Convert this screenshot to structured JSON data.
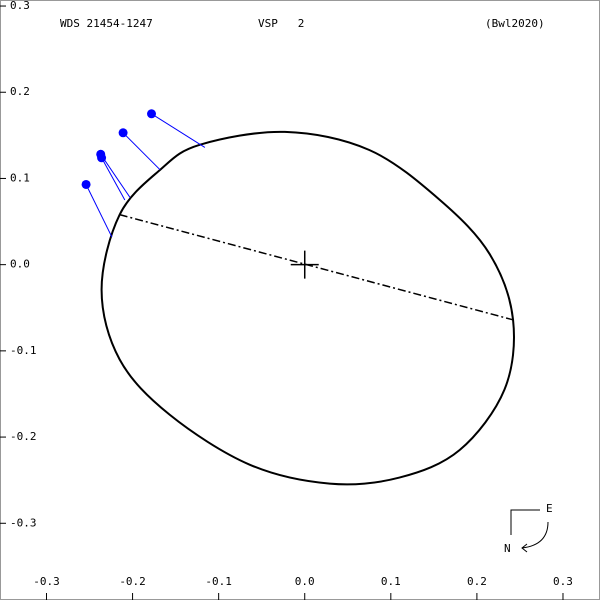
{
  "chart_data": {
    "type": "orbit",
    "title": "WDS 21454-1247",
    "subtitle": "VSP   2",
    "reference": "(Bwl2020)",
    "xlim": [
      -0.354,
      0.343
    ],
    "ylim": [
      -0.389,
      0.307
    ],
    "xticks": [
      -0.3,
      -0.2,
      -0.1,
      {
        "value": 0,
        "label": "0.0"
      },
      0.1,
      0.2,
      0.3
    ],
    "yticks": [
      0.3,
      0.2,
      0.1,
      {
        "value": 0,
        "label": "0.0"
      },
      -0.1,
      -0.2,
      -0.3
    ],
    "orbit": {
      "color": "#000000",
      "x": [
        -0.168,
        -0.122,
        -0.023,
        0.075,
        0.157,
        0.215,
        0.242,
        0.232,
        0.18,
        0.11,
        0.029,
        -0.064,
        -0.157,
        -0.215,
        -0.236,
        -0.215
      ],
      "y": [
        0.11,
        0.139,
        0.154,
        0.133,
        0.075,
        0.012,
        -0.064,
        -0.145,
        -0.215,
        -0.247,
        -0.254,
        -0.232,
        -0.174,
        -0.11,
        -0.029,
        0.058
      ]
    },
    "line_of_nodes": {
      "x": [
        -0.215,
        0.242
      ],
      "y": [
        0.058,
        -0.064
      ]
    },
    "observations": {
      "color": "#0000ff",
      "x": [
        -0.178,
        -0.211,
        -0.237,
        -0.236,
        -0.254
      ],
      "y": [
        0.175,
        0.153,
        0.128,
        0.124,
        0.093
      ],
      "residual_x": [
        -0.116,
        -0.168,
        -0.203,
        -0.209,
        -0.224
      ],
      "residual_y": [
        0.136,
        0.11,
        0.078,
        0.075,
        0.032
      ]
    },
    "compass": {
      "east": "E",
      "north": "N"
    }
  }
}
